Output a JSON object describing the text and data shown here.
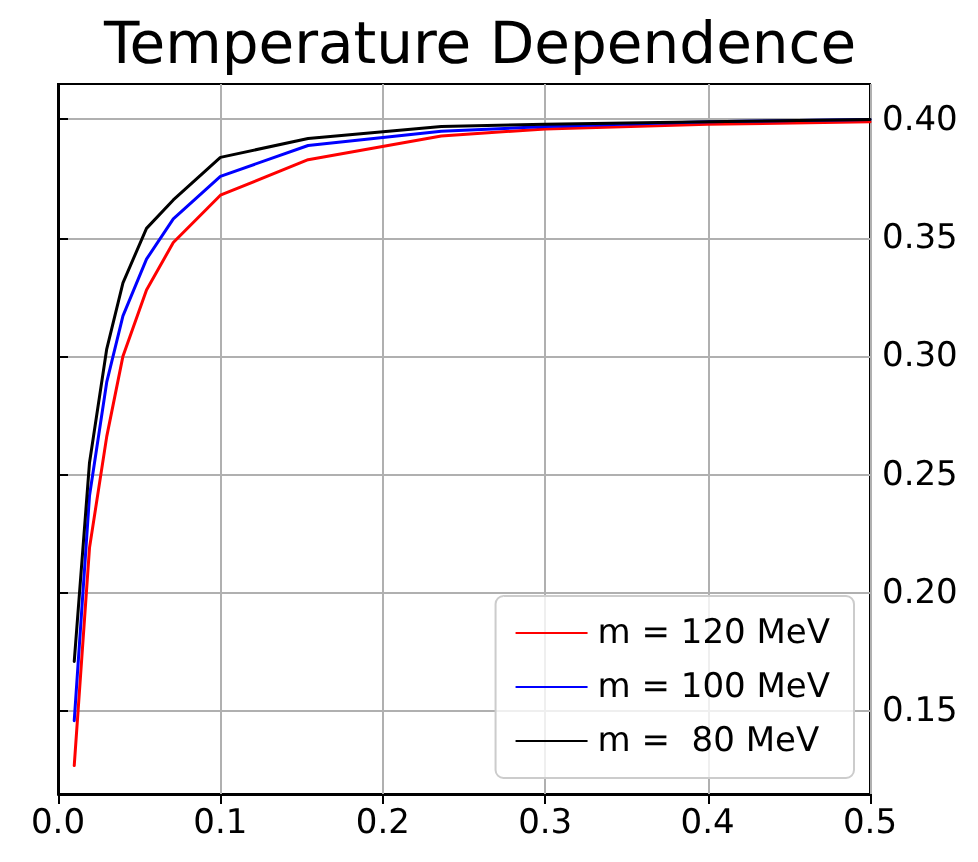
{
  "chart_data": {
    "type": "line",
    "title": "Temperature Dependence",
    "xlim": [
      0,
      0.5
    ],
    "ylim": [
      0.115,
      0.415
    ],
    "xticks": [
      {
        "value": 0,
        "label": "0.0"
      },
      {
        "value": 0.1,
        "label": "0.1"
      },
      {
        "value": 0.2,
        "label": "0.2"
      },
      {
        "value": 0.3,
        "label": "0.3"
      },
      {
        "value": 0.4,
        "label": "0.4"
      },
      {
        "value": 0.5,
        "label": "0.5"
      }
    ],
    "yticks": [
      {
        "value": 0.15,
        "label": "0.15"
      },
      {
        "value": 0.2,
        "label": "0.20"
      },
      {
        "value": 0.25,
        "label": "0.25"
      },
      {
        "value": 0.3,
        "label": "0.30"
      },
      {
        "value": 0.35,
        "label": "0.35"
      },
      {
        "value": 0.4,
        "label": "0.40"
      }
    ],
    "grid": true,
    "legend": "bottom right",
    "marker": "none",
    "line_style": "solid",
    "x": [
      0.01,
      0.0194,
      0.03,
      0.04,
      0.0545,
      0.071,
      0.1,
      0.154,
      0.236,
      0.3,
      0.4,
      0.5
    ],
    "series": [
      {
        "name": "m = 120 MeV",
        "color": "#ff0000",
        "values": [
          0.127,
          0.219,
          0.266,
          0.3,
          0.328,
          0.348,
          0.368,
          0.383,
          0.393,
          0.396,
          0.398,
          0.399
        ]
      },
      {
        "name": "m = 100 MeV",
        "color": "#0000ff",
        "values": [
          0.146,
          0.241,
          0.289,
          0.317,
          0.341,
          0.358,
          0.376,
          0.389,
          0.395,
          0.397,
          0.399,
          0.4
        ]
      },
      {
        "name": "m =  80 MeV",
        "color": "#000000",
        "values": [
          0.171,
          0.255,
          0.303,
          0.331,
          0.354,
          0.366,
          0.384,
          0.392,
          0.397,
          0.398,
          0.399,
          0.4
        ]
      }
    ]
  }
}
